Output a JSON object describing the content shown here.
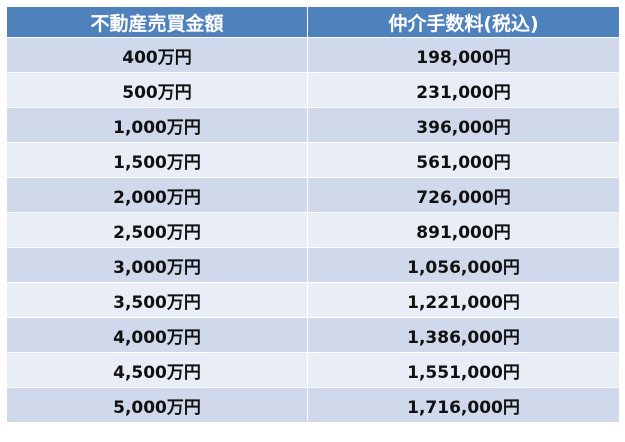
{
  "table": {
    "headers": [
      "不動産売買金額",
      "仲介手数料(税込)"
    ],
    "rows": [
      [
        "400万円",
        "198,000円"
      ],
      [
        "500万円",
        "231,000円"
      ],
      [
        "1,000万円",
        "396,000円"
      ],
      [
        "1,500万円",
        "561,000円"
      ],
      [
        "2,000万円",
        "726,000円"
      ],
      [
        "2,500万円",
        "891,000円"
      ],
      [
        "3,000万円",
        "1,056,000円"
      ],
      [
        "3,500万円",
        "1,221,000円"
      ],
      [
        "4,000万円",
        "1,386,000円"
      ],
      [
        "4,500万円",
        "1,551,000円"
      ],
      [
        "5,000万円",
        "1,716,000円"
      ]
    ]
  },
  "colors": {
    "header_bg": "#4f81bd",
    "row_odd_bg": "#d0d9eb",
    "row_even_bg": "#e9edf5",
    "header_text": "#ffffff",
    "cell_text": "#111111"
  }
}
